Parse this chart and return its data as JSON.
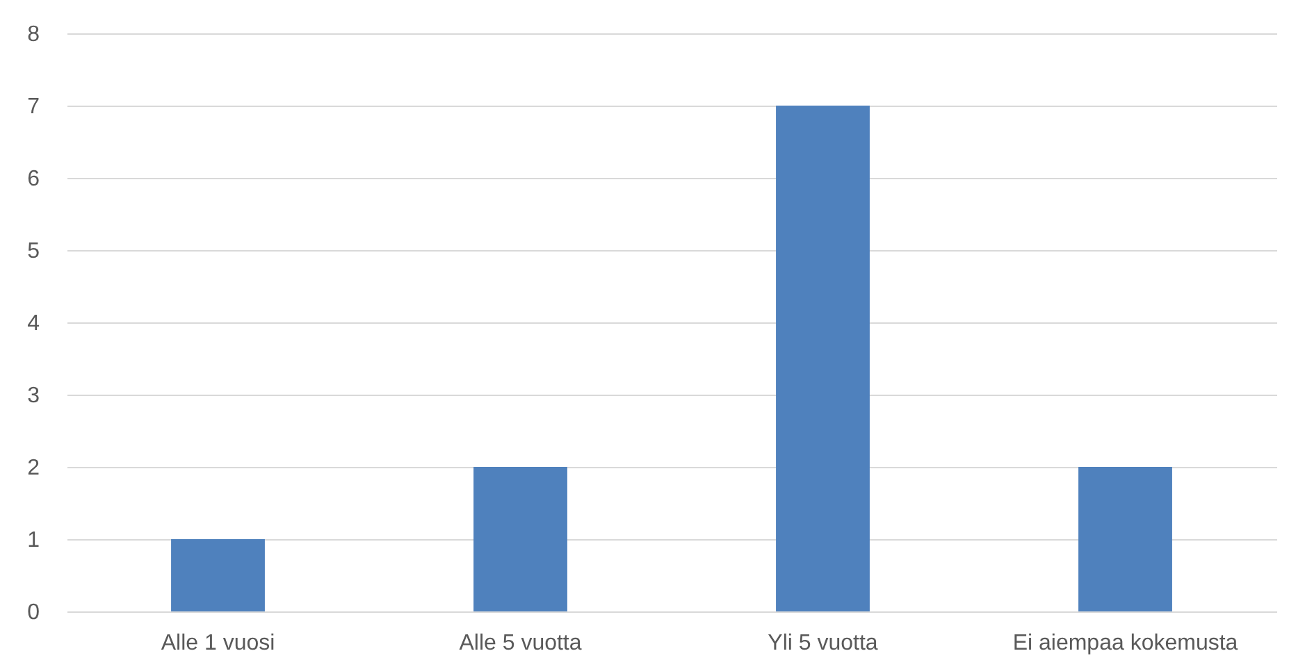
{
  "chart_data": {
    "type": "bar",
    "categories": [
      "Alle 1 vuosi",
      "Alle 5 vuotta",
      "Yli 5 vuotta",
      "Ei aiempaa kokemusta"
    ],
    "values": [
      1,
      2,
      7,
      2
    ],
    "color": "#4f81bd",
    "ylim": [
      0,
      8
    ],
    "yticks": [
      0,
      1,
      2,
      3,
      4,
      5,
      6,
      7,
      8
    ],
    "grid": "y"
  }
}
